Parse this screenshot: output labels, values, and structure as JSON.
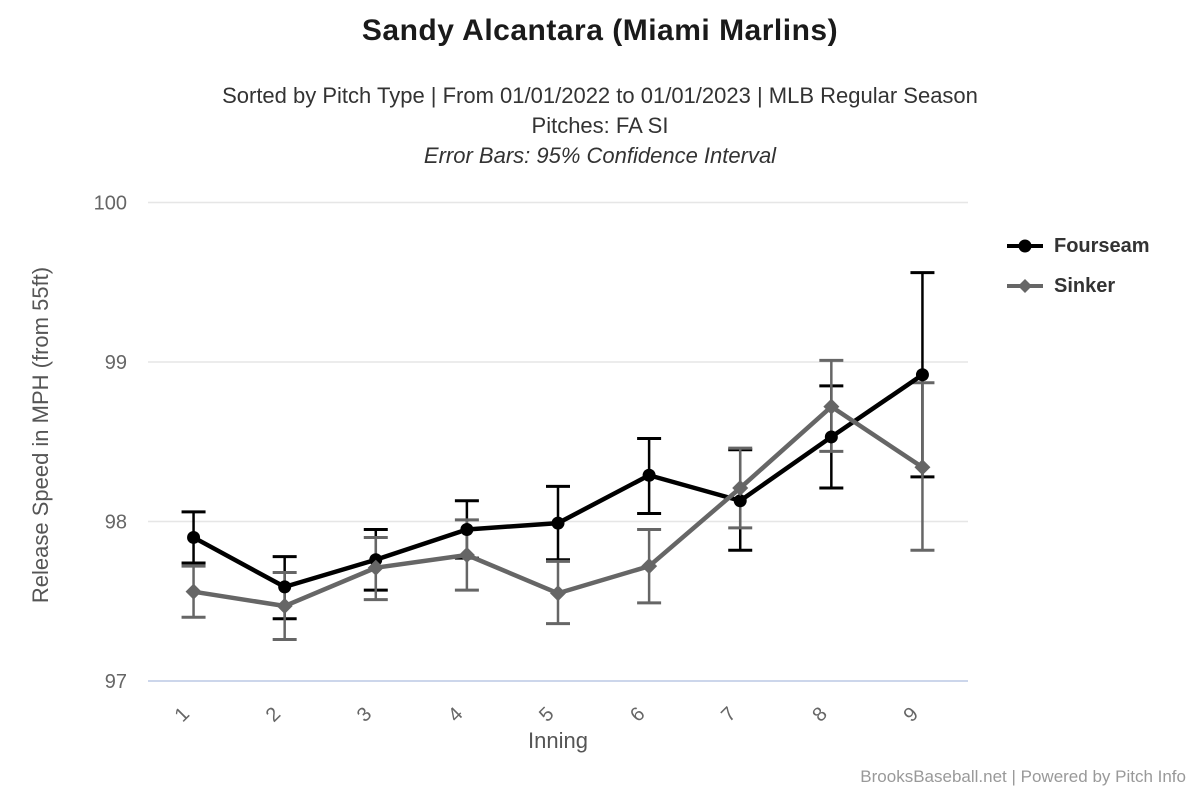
{
  "header": {
    "title": "Sandy Alcantara (Miami Marlins)",
    "subtitle_line1": "Sorted by Pitch Type | From 01/01/2022 to 01/01/2023 | MLB Regular Season",
    "subtitle_line2": "Pitches: FA SI",
    "subtitle_line3": "Error Bars: 95% Confidence Interval"
  },
  "footer": {
    "credit": "BrooksBaseball.net | Powered by Pitch Info"
  },
  "colors": {
    "fourseam": "#000000",
    "sinker": "#666666",
    "gridline": "#e6e6e6",
    "axis_line": "#ccd6eb",
    "tick_label": "#666666",
    "axis_title": "#555555",
    "title": "#1a1a1a",
    "subtitle": "#333333",
    "credit": "#999999"
  },
  "chart_data": {
    "type": "line",
    "title": "Sandy Alcantara (Miami Marlins)",
    "xlabel": "Inning",
    "ylabel": "Release Speed in MPH (from 55ft)",
    "categories": [
      "1",
      "2",
      "3",
      "4",
      "5",
      "6",
      "7",
      "8",
      "9"
    ],
    "ylim": [
      97,
      100
    ],
    "yticks": [
      97,
      98,
      99,
      100
    ],
    "grid": true,
    "legend_position": "right",
    "error_bars": "95% Confidence Interval",
    "series": [
      {
        "name": "Fourseam",
        "marker": "circle",
        "color": "#000000",
        "values": [
          97.9,
          97.59,
          97.76,
          97.95,
          97.99,
          98.29,
          98.13,
          98.53,
          98.92
        ],
        "ci_low": [
          97.74,
          97.39,
          97.57,
          97.77,
          97.76,
          98.05,
          97.82,
          98.21,
          98.28
        ],
        "ci_high": [
          98.06,
          97.78,
          97.95,
          98.13,
          98.22,
          98.52,
          98.45,
          98.85,
          99.56
        ]
      },
      {
        "name": "Sinker",
        "marker": "diamond",
        "color": "#666666",
        "values": [
          97.56,
          97.47,
          97.71,
          97.79,
          97.55,
          97.72,
          98.21,
          98.72,
          98.34
        ],
        "ci_low": [
          97.4,
          97.26,
          97.51,
          97.57,
          97.36,
          97.49,
          97.96,
          98.44,
          97.82
        ],
        "ci_high": [
          97.72,
          97.68,
          97.9,
          98.01,
          97.75,
          97.95,
          98.46,
          99.01,
          98.87
        ]
      }
    ]
  }
}
